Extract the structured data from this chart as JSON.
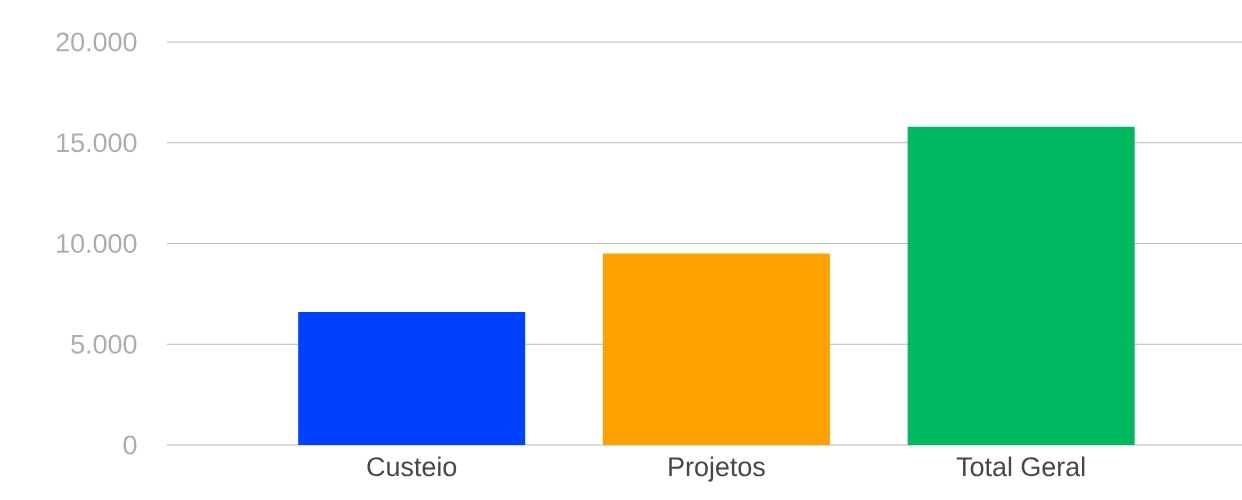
{
  "chart_data": {
    "type": "bar",
    "categories": [
      "Custeio",
      "Projetos",
      "Total Geral"
    ],
    "values": [
      6600,
      9500,
      15800
    ],
    "colors": [
      "#0040ff",
      "#ffa200",
      "#00b860"
    ],
    "ylim": [
      0,
      20000
    ],
    "yticks": [
      {
        "value": 0,
        "label": "0"
      },
      {
        "value": 5000,
        "label": "5.000"
      },
      {
        "value": 10000,
        "label": "10.000"
      },
      {
        "value": 15000,
        "label": "15.000"
      },
      {
        "value": 20000,
        "label": "20.000"
      }
    ],
    "grid": "y"
  }
}
